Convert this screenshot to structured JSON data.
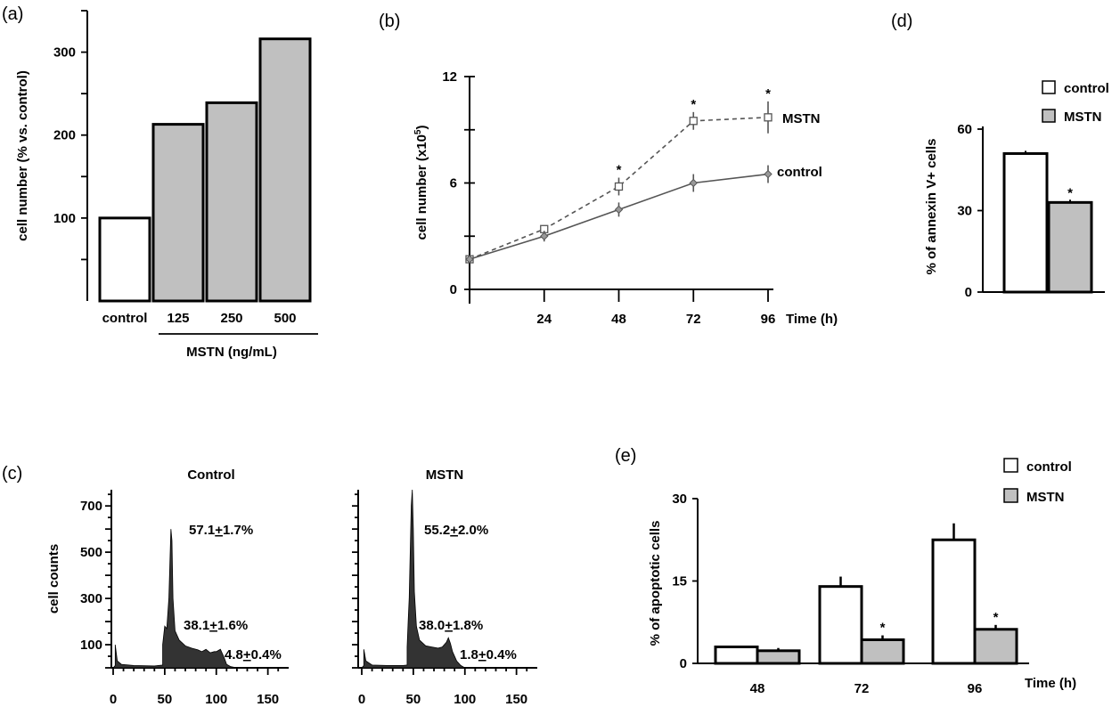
{
  "colors": {
    "white_bar": "#ffffff",
    "gray_bar": "#c0c0c0",
    "hist_fill": "#333333",
    "line_gray": "#555555"
  },
  "chart_data": [
    {
      "panel": "(a)",
      "type": "bar",
      "categories": [
        "control",
        "125",
        "250",
        "500"
      ],
      "values": [
        100,
        213,
        239,
        316
      ],
      "colors": [
        "#ffffff",
        "#c0c0c0",
        "#c0c0c0",
        "#c0c0c0"
      ],
      "ylabel": "cell number (% vs. control)",
      "group_label": "MSTN (ng/mL)",
      "yticks": [
        100,
        200,
        300
      ],
      "ylim": [
        0,
        350
      ]
    },
    {
      "panel": "(b)",
      "type": "line",
      "x": [
        0,
        24,
        48,
        72,
        96
      ],
      "xticks": [
        24,
        48,
        72,
        96
      ],
      "yticks": [
        0,
        6,
        12
      ],
      "xlabel": "Time (h)",
      "ylabel": "cell number (x10",
      "ylabel_sup": "5",
      "ylabel_end": ")",
      "ylim": [
        0,
        12
      ],
      "xlim": [
        0,
        96
      ],
      "series": [
        {
          "name": "MSTN",
          "values": [
            1.7,
            3.4,
            5.8,
            9.5,
            9.7
          ],
          "errors": [
            0,
            0.2,
            0.5,
            0.5,
            0.9
          ],
          "significant": [
            false,
            false,
            true,
            true,
            true
          ],
          "style": "dashed",
          "marker": "square"
        },
        {
          "name": "control",
          "values": [
            1.7,
            3.0,
            4.5,
            6.0,
            6.5
          ],
          "errors": [
            0,
            0.3,
            0.4,
            0.5,
            0.5
          ],
          "style": "solid",
          "marker": "diamond"
        }
      ],
      "significance_marker": "*"
    },
    {
      "panel": "(c)",
      "type": "histogram",
      "ylabel": "cell counts",
      "yticks": [
        100,
        300,
        500,
        700
      ],
      "xticks": [
        0,
        50,
        100,
        150
      ],
      "ylim": [
        0,
        770
      ],
      "xlim": [
        0,
        165
      ],
      "subplots": [
        {
          "title": "Control",
          "annotations": [
            "57.1±1.7%",
            "38.1±1.6%",
            "4.8±0.4%"
          ],
          "annotations_parts": [
            [
              "57.1",
              "+",
              "1.7%"
            ],
            [
              "38.1",
              "+",
              "1.6%"
            ],
            [
              "4.8",
              "+",
              "0.4%"
            ]
          ],
          "profile": [
            [
              0,
              0
            ],
            [
              2,
              10
            ],
            [
              2,
              100
            ],
            [
              4,
              30
            ],
            [
              8,
              15
            ],
            [
              20,
              10
            ],
            [
              40,
              8
            ],
            [
              48,
              12
            ],
            [
              48,
              100
            ],
            [
              50,
              180
            ],
            [
              52,
              170
            ],
            [
              54,
              300
            ],
            [
              55,
              450
            ],
            [
              56,
              600
            ],
            [
              57,
              550
            ],
            [
              58,
              300
            ],
            [
              60,
              160
            ],
            [
              64,
              120
            ],
            [
              70,
              95
            ],
            [
              76,
              85
            ],
            [
              82,
              78
            ],
            [
              86,
              70
            ],
            [
              90,
              80
            ],
            [
              94,
              65
            ],
            [
              98,
              70
            ],
            [
              100,
              70
            ],
            [
              102,
              75
            ],
            [
              104,
              80
            ],
            [
              106,
              60
            ],
            [
              108,
              40
            ],
            [
              110,
              15
            ],
            [
              114,
              5
            ],
            [
              120,
              0
            ]
          ]
        },
        {
          "title": "MSTN",
          "annotations": [
            "55.2±2.0%",
            "38.0±1.8%",
            "1.8±0.4%"
          ],
          "annotations_parts": [
            [
              "55.2",
              "+",
              "2.0%"
            ],
            [
              "38.0",
              "+",
              "1.8%"
            ],
            [
              "1.8",
              "+",
              "0.4%"
            ]
          ],
          "profile": [
            [
              0,
              0
            ],
            [
              2,
              10
            ],
            [
              2,
              80
            ],
            [
              4,
              30
            ],
            [
              10,
              12
            ],
            [
              25,
              10
            ],
            [
              40,
              10
            ],
            [
              44,
              12
            ],
            [
              44,
              90
            ],
            [
              45,
              200
            ],
            [
              46,
              300
            ],
            [
              47,
              500
            ],
            [
              48,
              700
            ],
            [
              49,
              770
            ],
            [
              50,
              600
            ],
            [
              51,
              330
            ],
            [
              53,
              180
            ],
            [
              56,
              120
            ],
            [
              62,
              95
            ],
            [
              68,
              90
            ],
            [
              74,
              85
            ],
            [
              78,
              90
            ],
            [
              82,
              110
            ],
            [
              84,
              130
            ],
            [
              86,
              105
            ],
            [
              88,
              70
            ],
            [
              92,
              30
            ],
            [
              96,
              10
            ],
            [
              100,
              0
            ]
          ]
        }
      ]
    },
    {
      "panel": "(d)",
      "type": "bar",
      "categories": [
        "control",
        "MSTN"
      ],
      "values": [
        51,
        33
      ],
      "errors": [
        1,
        1
      ],
      "significant": [
        false,
        true
      ],
      "colors": [
        "#ffffff",
        "#c0c0c0"
      ],
      "ylabel": "% of annexin V+ cells",
      "yticks": [
        0,
        30,
        60
      ],
      "ylim": [
        0,
        60
      ],
      "legend": [
        "control",
        "MSTN"
      ]
    },
    {
      "panel": "(e)",
      "type": "bar",
      "categories": [
        "48",
        "72",
        "96"
      ],
      "series": [
        {
          "name": "control",
          "values": [
            3,
            14,
            22.5
          ],
          "errors": [
            0,
            1.8,
            3
          ]
        },
        {
          "name": "MSTN",
          "values": [
            2.3,
            4.3,
            6.2
          ],
          "errors": [
            0.5,
            0.8,
            0.8
          ],
          "significant": [
            false,
            true,
            true
          ]
        }
      ],
      "xlabel": "Time (h)",
      "ylabel": "% of apoptotic cells",
      "yticks": [
        0,
        15,
        30
      ],
      "ylim": [
        0,
        30
      ],
      "legend": [
        "control",
        "MSTN"
      ]
    }
  ]
}
